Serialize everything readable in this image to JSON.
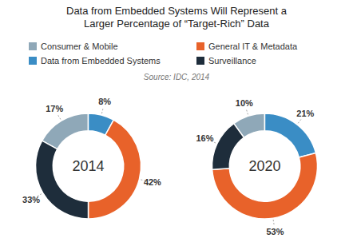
{
  "chart_data": {
    "type": "donut",
    "title": "Data from Embedded Systems Will Represent a\nLarger Percentage of “Target-Rich” Data",
    "annotations": [
      "Source: IDC, 2014"
    ],
    "categories": [
      "Consumer & Mobile",
      "Data from Embedded Systems",
      "General IT & Metadata",
      "Surveillance"
    ],
    "colors": [
      "#8fa8b8",
      "#3a8dc5",
      "#e8622a",
      "#1e2d3b"
    ],
    "legend": "top",
    "data_labels": true,
    "series": [
      {
        "name": "2014",
        "values": [
          17,
          8,
          42,
          33
        ],
        "value_labels": [
          "17%",
          "8%",
          "42%",
          "33%"
        ]
      },
      {
        "name": "2020",
        "values": [
          10,
          21,
          53,
          16
        ],
        "value_labels": [
          "10%",
          "21%",
          "53%",
          "16%"
        ]
      }
    ]
  }
}
